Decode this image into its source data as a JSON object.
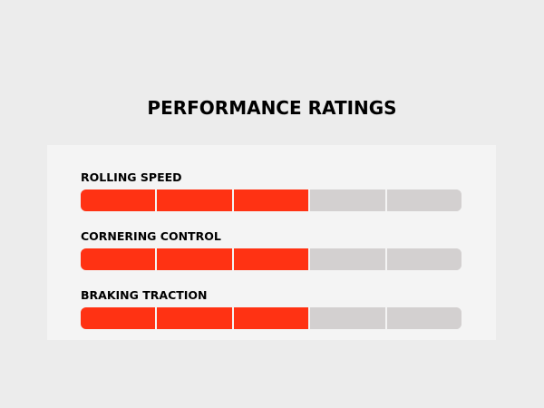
{
  "title": "PERFORMANCE RATINGS",
  "colors": {
    "background": "#ececec",
    "panel": "#f4f4f4",
    "filled": "#ff3213",
    "empty": "#d3d0d0",
    "text": "#000000"
  },
  "segments_total": 5,
  "ratings": [
    {
      "label": "ROLLING SPEED",
      "filled": 3
    },
    {
      "label": "CORNERING CONTROL",
      "filled": 3
    },
    {
      "label": "BRAKING TRACTION",
      "filled": 3
    }
  ]
}
